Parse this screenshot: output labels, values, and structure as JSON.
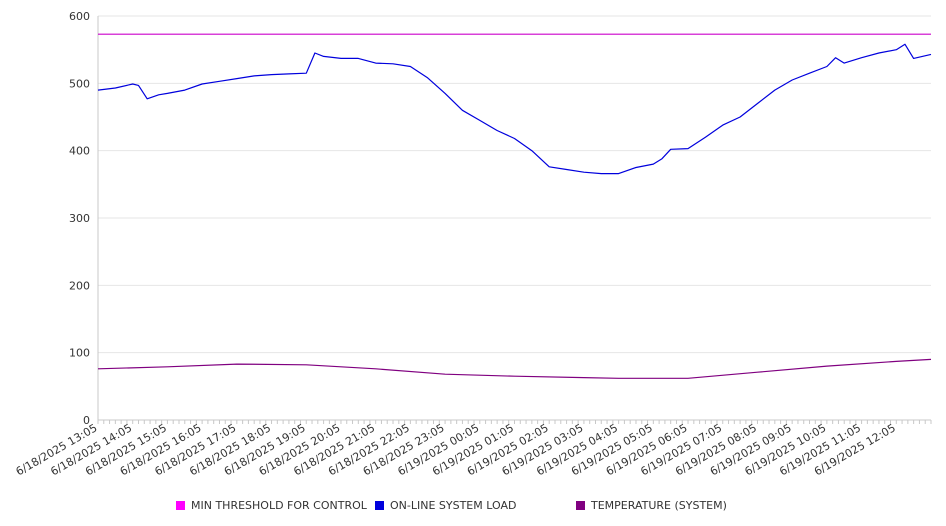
{
  "chart_data": {
    "type": "line",
    "title": "",
    "xlabel": "",
    "ylabel": "",
    "ylim": [
      0,
      600
    ],
    "yticks": [
      "0",
      "100",
      "200",
      "300",
      "400",
      "500",
      "600"
    ],
    "grid": true,
    "legend_position": "bottom",
    "xtick_labels": [
      "6/18/2025 13:05",
      "6/18/2025 14:05",
      "6/18/2025 15:05",
      "6/18/2025 16:05",
      "6/18/2025 17:05",
      "6/18/2025 18:05",
      "6/18/2025 19:05",
      "6/18/2025 20:05",
      "6/18/2025 21:05",
      "6/18/2025 22:05",
      "6/18/2025 23:05",
      "6/19/2025 00:05",
      "6/19/2025 01:05",
      "6/19/2025 02:05",
      "6/19/2025 03:05",
      "6/19/2025 04:05",
      "6/19/2025 05:05",
      "6/19/2025 06:05",
      "6/19/2025 07:05",
      "6/19/2025 08:05",
      "6/19/2025 09:05",
      "6/19/2025 10:05",
      "6/19/2025 11:05",
      "6/19/2025 12:05"
    ],
    "series": [
      {
        "name": "MIN THRESHOLD FOR CONTROL",
        "color": "#cc00cc",
        "x": [
          "6/18/2025 13:05",
          "6/19/2025 13:05"
        ],
        "values": [
          573,
          573
        ]
      },
      {
        "name": "ON-LINE SYSTEM LOAD",
        "color": "#0000dd",
        "x": [
          "6/18/2025 13:05",
          "6/18/2025 13:35",
          "6/18/2025 14:05",
          "6/18/2025 14:15",
          "6/18/2025 14:30",
          "6/18/2025 14:50",
          "6/18/2025 15:05",
          "6/18/2025 15:35",
          "6/18/2025 16:05",
          "6/18/2025 16:35",
          "6/18/2025 17:05",
          "6/18/2025 17:35",
          "6/18/2025 18:05",
          "6/18/2025 18:35",
          "6/18/2025 19:05",
          "6/18/2025 19:20",
          "6/18/2025 19:35",
          "6/18/2025 20:05",
          "6/18/2025 20:35",
          "6/18/2025 21:05",
          "6/18/2025 21:35",
          "6/18/2025 22:05",
          "6/18/2025 22:35",
          "6/18/2025 23:05",
          "6/18/2025 23:35",
          "6/19/2025 00:05",
          "6/19/2025 00:35",
          "6/19/2025 01:05",
          "6/19/2025 01:35",
          "6/19/2025 02:05",
          "6/19/2025 02:35",
          "6/19/2025 03:05",
          "6/19/2025 03:35",
          "6/19/2025 04:05",
          "6/19/2025 04:35",
          "6/19/2025 05:05",
          "6/19/2025 05:20",
          "6/19/2025 05:35",
          "6/19/2025 06:05",
          "6/19/2025 06:35",
          "6/19/2025 07:05",
          "6/19/2025 07:35",
          "6/19/2025 08:05",
          "6/19/2025 08:35",
          "6/19/2025 09:05",
          "6/19/2025 09:35",
          "6/19/2025 10:05",
          "6/19/2025 10:20",
          "6/19/2025 10:35",
          "6/19/2025 11:05",
          "6/19/2025 11:35",
          "6/19/2025 12:05",
          "6/19/2025 12:20",
          "6/19/2025 12:35",
          "6/19/2025 12:50",
          "6/19/2025 13:05"
        ],
        "values": [
          490,
          493,
          499,
          497,
          477,
          483,
          485,
          490,
          499,
          503,
          507,
          511,
          513,
          514,
          515,
          545,
          540,
          537,
          537,
          530,
          529,
          525,
          508,
          485,
          460,
          445,
          430,
          418,
          400,
          376,
          372,
          368,
          366,
          366,
          375,
          380,
          388,
          402,
          403,
          420,
          438,
          450,
          470,
          490,
          505,
          515,
          525,
          538,
          530,
          538,
          545,
          550,
          558,
          537,
          540,
          543
        ]
      },
      {
        "name": "TEMPERATURE (SYSTEM)",
        "color": "#800080",
        "x": [
          "6/18/2025 13:05",
          "6/18/2025 15:05",
          "6/18/2025 17:05",
          "6/18/2025 19:05",
          "6/18/2025 21:05",
          "6/18/2025 23:05",
          "6/19/2025 01:05",
          "6/19/2025 03:05",
          "6/19/2025 04:05",
          "6/19/2025 06:05",
          "6/19/2025 08:05",
          "6/19/2025 10:05",
          "6/19/2025 12:05",
          "6/19/2025 13:05"
        ],
        "values": [
          76,
          79,
          83,
          82,
          76,
          68,
          65,
          63,
          62,
          62,
          71,
          80,
          87,
          90
        ]
      }
    ]
  }
}
